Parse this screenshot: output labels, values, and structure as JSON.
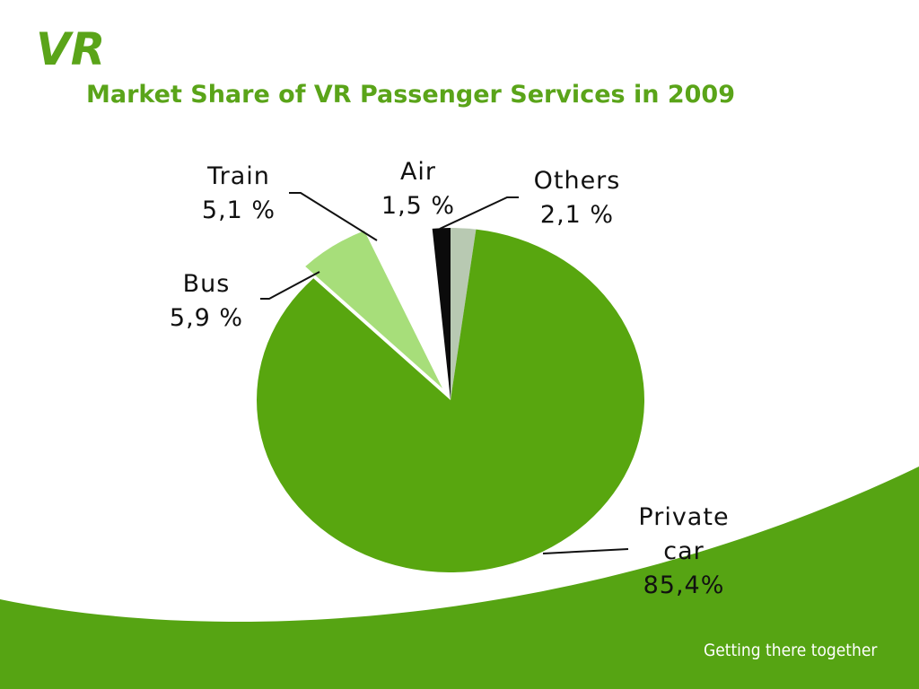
{
  "brand": {
    "logo_text": "VR",
    "tagline": "Getting there together"
  },
  "colors": {
    "brand_green": "#5aa419",
    "private_car": "#58a60f",
    "bus": "#a7de7a",
    "train": "#ffffff",
    "air": "#0b0b0b",
    "others": "#b8c9b2"
  },
  "chart_data": {
    "type": "pie",
    "title": "Market Share of VR Passenger Services in 2009",
    "slices": [
      {
        "name": "Others",
        "value": 2.1,
        "label_lines": [
          "Others",
          "2,1 %"
        ],
        "color": "#b8c9b2"
      },
      {
        "name": "Private car",
        "value": 85.4,
        "label_lines": [
          "Private",
          "car",
          "85,4%"
        ],
        "color": "#58a60f"
      },
      {
        "name": "Bus",
        "value": 5.9,
        "label_lines": [
          "Bus",
          "5,9 %"
        ],
        "color": "#a7de7a"
      },
      {
        "name": "Train",
        "value": 5.1,
        "label_lines": [
          "Train",
          "5,1 %"
        ],
        "color": "#ffffff"
      },
      {
        "name": "Air",
        "value": 1.5,
        "label_lines": [
          "Air",
          "1,5 %"
        ],
        "color": "#0b0b0b"
      }
    ],
    "start_angle_deg": 0,
    "direction": "clockwise",
    "legend": "none"
  }
}
